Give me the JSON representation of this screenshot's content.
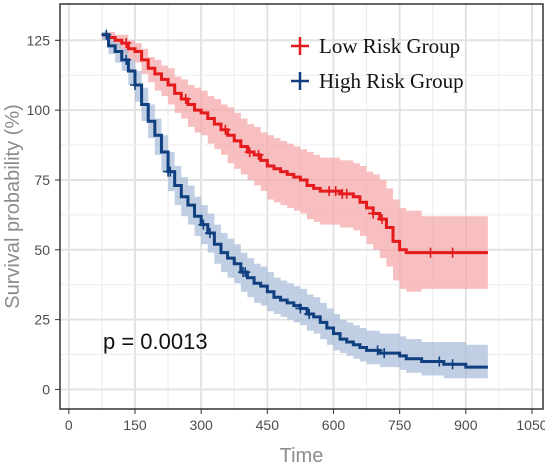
{
  "chart_data": {
    "type": "line",
    "subtype": "kaplan-meier",
    "title": "",
    "xlabel": "Time",
    "ylabel": "Survival probability (%)",
    "xlim": [
      -20,
      1075
    ],
    "ylim": [
      -7,
      138
    ],
    "xticks": [
      0,
      150,
      300,
      450,
      600,
      750,
      900,
      1050
    ],
    "yticks": [
      0,
      25,
      50,
      75,
      100,
      125
    ],
    "grid": true,
    "legend_position": "top-right",
    "annotation": "p = 0.0013",
    "series": [
      {
        "name": "Low Risk Group",
        "color": "#e41a1c",
        "band_color": "#f4a6a6",
        "points": [
          [
            75,
            127
          ],
          [
            90,
            126
          ],
          [
            105,
            125
          ],
          [
            120,
            124
          ],
          [
            135,
            122
          ],
          [
            150,
            121
          ],
          [
            165,
            118
          ],
          [
            180,
            115
          ],
          [
            195,
            113
          ],
          [
            210,
            111
          ],
          [
            225,
            109
          ],
          [
            240,
            106
          ],
          [
            255,
            104
          ],
          [
            270,
            102
          ],
          [
            285,
            100
          ],
          [
            300,
            99
          ],
          [
            315,
            97
          ],
          [
            330,
            95
          ],
          [
            345,
            93
          ],
          [
            360,
            91
          ],
          [
            375,
            89
          ],
          [
            390,
            87
          ],
          [
            405,
            85
          ],
          [
            420,
            84
          ],
          [
            435,
            82
          ],
          [
            450,
            80
          ],
          [
            465,
            79
          ],
          [
            480,
            78
          ],
          [
            495,
            77
          ],
          [
            510,
            76
          ],
          [
            525,
            75
          ],
          [
            540,
            73
          ],
          [
            555,
            72
          ],
          [
            570,
            71
          ],
          [
            585,
            71
          ],
          [
            600,
            71
          ],
          [
            615,
            70
          ],
          [
            630,
            70
          ],
          [
            645,
            69
          ],
          [
            660,
            67
          ],
          [
            675,
            65
          ],
          [
            690,
            63
          ],
          [
            705,
            61
          ],
          [
            720,
            58
          ],
          [
            735,
            53
          ],
          [
            750,
            50
          ],
          [
            765,
            49
          ],
          [
            800,
            49
          ],
          [
            850,
            49
          ],
          [
            900,
            49
          ],
          [
            950,
            49
          ]
        ],
        "upper": [
          [
            75,
            128
          ],
          [
            90,
            128
          ],
          [
            105,
            127
          ],
          [
            120,
            127
          ],
          [
            135,
            125
          ],
          [
            150,
            124
          ],
          [
            165,
            122
          ],
          [
            180,
            119
          ],
          [
            195,
            118
          ],
          [
            210,
            116
          ],
          [
            225,
            115
          ],
          [
            240,
            112
          ],
          [
            255,
            111
          ],
          [
            270,
            109
          ],
          [
            285,
            108
          ],
          [
            300,
            107
          ],
          [
            315,
            105
          ],
          [
            330,
            104
          ],
          [
            345,
            102
          ],
          [
            360,
            101
          ],
          [
            375,
            99
          ],
          [
            390,
            97
          ],
          [
            405,
            95
          ],
          [
            420,
            94
          ],
          [
            435,
            92
          ],
          [
            450,
            91
          ],
          [
            465,
            90
          ],
          [
            480,
            89
          ],
          [
            495,
            88
          ],
          [
            510,
            87
          ],
          [
            525,
            86
          ],
          [
            540,
            85
          ],
          [
            555,
            84
          ],
          [
            570,
            83
          ],
          [
            585,
            83
          ],
          [
            600,
            83
          ],
          [
            615,
            82
          ],
          [
            630,
            82
          ],
          [
            645,
            81
          ],
          [
            660,
            80
          ],
          [
            675,
            78
          ],
          [
            690,
            77
          ],
          [
            705,
            75
          ],
          [
            720,
            72
          ],
          [
            735,
            68
          ],
          [
            750,
            65
          ],
          [
            765,
            64
          ],
          [
            800,
            62
          ],
          [
            850,
            62
          ],
          [
            900,
            62
          ],
          [
            950,
            61
          ]
        ],
        "lower": [
          [
            75,
            125
          ],
          [
            90,
            123
          ],
          [
            105,
            122
          ],
          [
            120,
            120
          ],
          [
            135,
            118
          ],
          [
            150,
            117
          ],
          [
            165,
            113
          ],
          [
            180,
            110
          ],
          [
            195,
            107
          ],
          [
            210,
            105
          ],
          [
            225,
            102
          ],
          [
            240,
            99
          ],
          [
            255,
            97
          ],
          [
            270,
            94
          ],
          [
            285,
            92
          ],
          [
            300,
            91
          ],
          [
            315,
            88
          ],
          [
            330,
            86
          ],
          [
            345,
            84
          ],
          [
            360,
            81
          ],
          [
            375,
            79
          ],
          [
            390,
            77
          ],
          [
            405,
            75
          ],
          [
            420,
            73
          ],
          [
            435,
            71
          ],
          [
            450,
            68
          ],
          [
            465,
            67
          ],
          [
            480,
            66
          ],
          [
            495,
            65
          ],
          [
            510,
            64
          ],
          [
            525,
            63
          ],
          [
            540,
            61
          ],
          [
            555,
            60
          ],
          [
            570,
            59
          ],
          [
            585,
            59
          ],
          [
            600,
            59
          ],
          [
            615,
            58
          ],
          [
            630,
            58
          ],
          [
            645,
            57
          ],
          [
            660,
            55
          ],
          [
            675,
            52
          ],
          [
            690,
            50
          ],
          [
            705,
            47
          ],
          [
            720,
            44
          ],
          [
            735,
            39
          ],
          [
            750,
            36
          ],
          [
            765,
            35
          ],
          [
            800,
            36
          ],
          [
            850,
            36
          ],
          [
            900,
            36
          ],
          [
            950,
            37
          ]
        ],
        "censor_times": [
          130,
          265,
          355,
          410,
          430,
          590,
          605,
          620,
          630,
          690,
          710,
          820,
          870
        ]
      },
      {
        "name": "High Risk Group",
        "color": "#0f3f7e",
        "band_color": "#a8bcd8",
        "points": [
          [
            75,
            127
          ],
          [
            90,
            123
          ],
          [
            105,
            121
          ],
          [
            120,
            118
          ],
          [
            135,
            114
          ],
          [
            150,
            109
          ],
          [
            165,
            102
          ],
          [
            180,
            96
          ],
          [
            195,
            91
          ],
          [
            210,
            85
          ],
          [
            225,
            78
          ],
          [
            240,
            73
          ],
          [
            255,
            69
          ],
          [
            270,
            66
          ],
          [
            285,
            62
          ],
          [
            300,
            59
          ],
          [
            315,
            56
          ],
          [
            330,
            52
          ],
          [
            345,
            49
          ],
          [
            360,
            47
          ],
          [
            375,
            45
          ],
          [
            390,
            42
          ],
          [
            405,
            40
          ],
          [
            420,
            38
          ],
          [
            435,
            37
          ],
          [
            450,
            35
          ],
          [
            465,
            33
          ],
          [
            480,
            32
          ],
          [
            495,
            31
          ],
          [
            510,
            30
          ],
          [
            525,
            29
          ],
          [
            540,
            27
          ],
          [
            555,
            26
          ],
          [
            570,
            24
          ],
          [
            585,
            22
          ],
          [
            600,
            20
          ],
          [
            615,
            18
          ],
          [
            630,
            17
          ],
          [
            645,
            16
          ],
          [
            660,
            15
          ],
          [
            675,
            14
          ],
          [
            690,
            14
          ],
          [
            705,
            13
          ],
          [
            720,
            13
          ],
          [
            735,
            13
          ],
          [
            750,
            12
          ],
          [
            765,
            11
          ],
          [
            800,
            10
          ],
          [
            850,
            9
          ],
          [
            900,
            8
          ],
          [
            950,
            8
          ]
        ],
        "upper": [
          [
            75,
            128
          ],
          [
            90,
            126
          ],
          [
            105,
            124
          ],
          [
            120,
            122
          ],
          [
            135,
            118
          ],
          [
            150,
            114
          ],
          [
            165,
            108
          ],
          [
            180,
            102
          ],
          [
            195,
            97
          ],
          [
            210,
            91
          ],
          [
            225,
            85
          ],
          [
            240,
            80
          ],
          [
            255,
            76
          ],
          [
            270,
            73
          ],
          [
            285,
            69
          ],
          [
            300,
            66
          ],
          [
            315,
            63
          ],
          [
            330,
            59
          ],
          [
            345,
            56
          ],
          [
            360,
            54
          ],
          [
            375,
            52
          ],
          [
            390,
            49
          ],
          [
            405,
            47
          ],
          [
            420,
            45
          ],
          [
            435,
            44
          ],
          [
            450,
            42
          ],
          [
            465,
            40
          ],
          [
            480,
            39
          ],
          [
            495,
            38
          ],
          [
            510,
            37
          ],
          [
            525,
            36
          ],
          [
            540,
            34
          ],
          [
            555,
            33
          ],
          [
            570,
            31
          ],
          [
            585,
            29
          ],
          [
            600,
            27
          ],
          [
            615,
            25
          ],
          [
            630,
            24
          ],
          [
            645,
            23
          ],
          [
            660,
            22
          ],
          [
            675,
            21
          ],
          [
            690,
            21
          ],
          [
            705,
            20
          ],
          [
            720,
            20
          ],
          [
            735,
            20
          ],
          [
            750,
            19
          ],
          [
            765,
            18
          ],
          [
            800,
            17
          ],
          [
            850,
            17
          ],
          [
            900,
            16
          ],
          [
            950,
            16
          ]
        ],
        "lower": [
          [
            75,
            125
          ],
          [
            90,
            120
          ],
          [
            105,
            117
          ],
          [
            120,
            114
          ],
          [
            135,
            109
          ],
          [
            150,
            103
          ],
          [
            165,
            96
          ],
          [
            180,
            90
          ],
          [
            195,
            84
          ],
          [
            210,
            78
          ],
          [
            225,
            71
          ],
          [
            240,
            66
          ],
          [
            255,
            62
          ],
          [
            270,
            59
          ],
          [
            285,
            55
          ],
          [
            300,
            52
          ],
          [
            315,
            49
          ],
          [
            330,
            45
          ],
          [
            345,
            42
          ],
          [
            360,
            40
          ],
          [
            375,
            38
          ],
          [
            390,
            35
          ],
          [
            405,
            33
          ],
          [
            420,
            31
          ],
          [
            435,
            30
          ],
          [
            450,
            28
          ],
          [
            465,
            27
          ],
          [
            480,
            26
          ],
          [
            495,
            25
          ],
          [
            510,
            24
          ],
          [
            525,
            23
          ],
          [
            540,
            21
          ],
          [
            555,
            20
          ],
          [
            570,
            18
          ],
          [
            585,
            16
          ],
          [
            600,
            14
          ],
          [
            615,
            13
          ],
          [
            630,
            12
          ],
          [
            645,
            11
          ],
          [
            660,
            10
          ],
          [
            675,
            9
          ],
          [
            690,
            9
          ],
          [
            705,
            8
          ],
          [
            720,
            8
          ],
          [
            735,
            8
          ],
          [
            750,
            7
          ],
          [
            765,
            6
          ],
          [
            800,
            5
          ],
          [
            850,
            4
          ],
          [
            900,
            4
          ],
          [
            950,
            3
          ]
        ],
        "censor_times": [
          85,
          130,
          150,
          225,
          230,
          305,
          320,
          395,
          400,
          525,
          545,
          700,
          715,
          840,
          870
        ]
      }
    ]
  }
}
